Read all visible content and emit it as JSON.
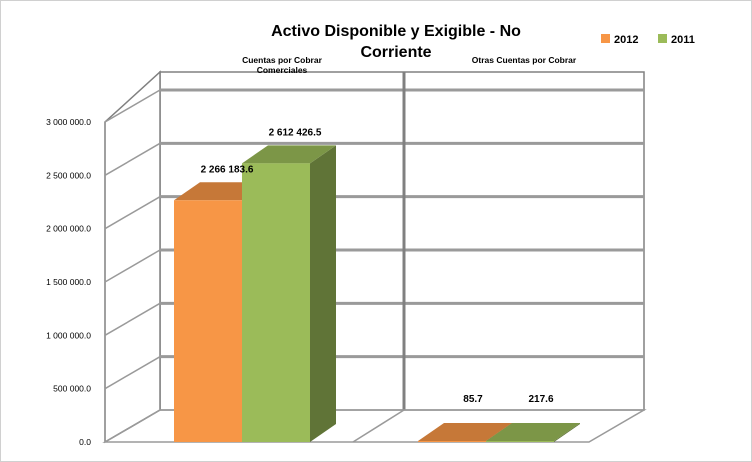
{
  "chart_data": {
    "type": "bar",
    "title_line1": "Activo Disponible  y Exigible  - No",
    "title_line2": "Corriente",
    "categories": [
      "Cuentas por Cobrar Comerciales",
      "Otras Cuentas por Cobrar"
    ],
    "category_label_lines": [
      [
        "Cuentas por Cobrar",
        "Comerciales"
      ],
      [
        "Otras Cuentas por Cobrar"
      ]
    ],
    "series": [
      {
        "name": "2012",
        "color": "#F79646",
        "values": [
          2266183.6,
          85.7
        ]
      },
      {
        "name": "2011",
        "color": "#9BBB59",
        "values": [
          2612426.5,
          217.6
        ]
      }
    ],
    "data_labels": [
      [
        "2 266 183.6",
        "85.7"
      ],
      [
        "2 612 426.5",
        "217.6"
      ]
    ],
    "y_ticks": [
      0,
      500000,
      1000000,
      1500000,
      2000000,
      2500000,
      3000000
    ],
    "y_tick_labels": [
      "0.0",
      "500 000.0",
      "1 000 000.0",
      "1 500 000.0",
      "2 000 000.0",
      "2 500 000.0",
      "3 000 000.0"
    ],
    "ylim": [
      0,
      3000000
    ],
    "grid": true,
    "legend_position": "top-right",
    "projection": "3d-perspective"
  }
}
